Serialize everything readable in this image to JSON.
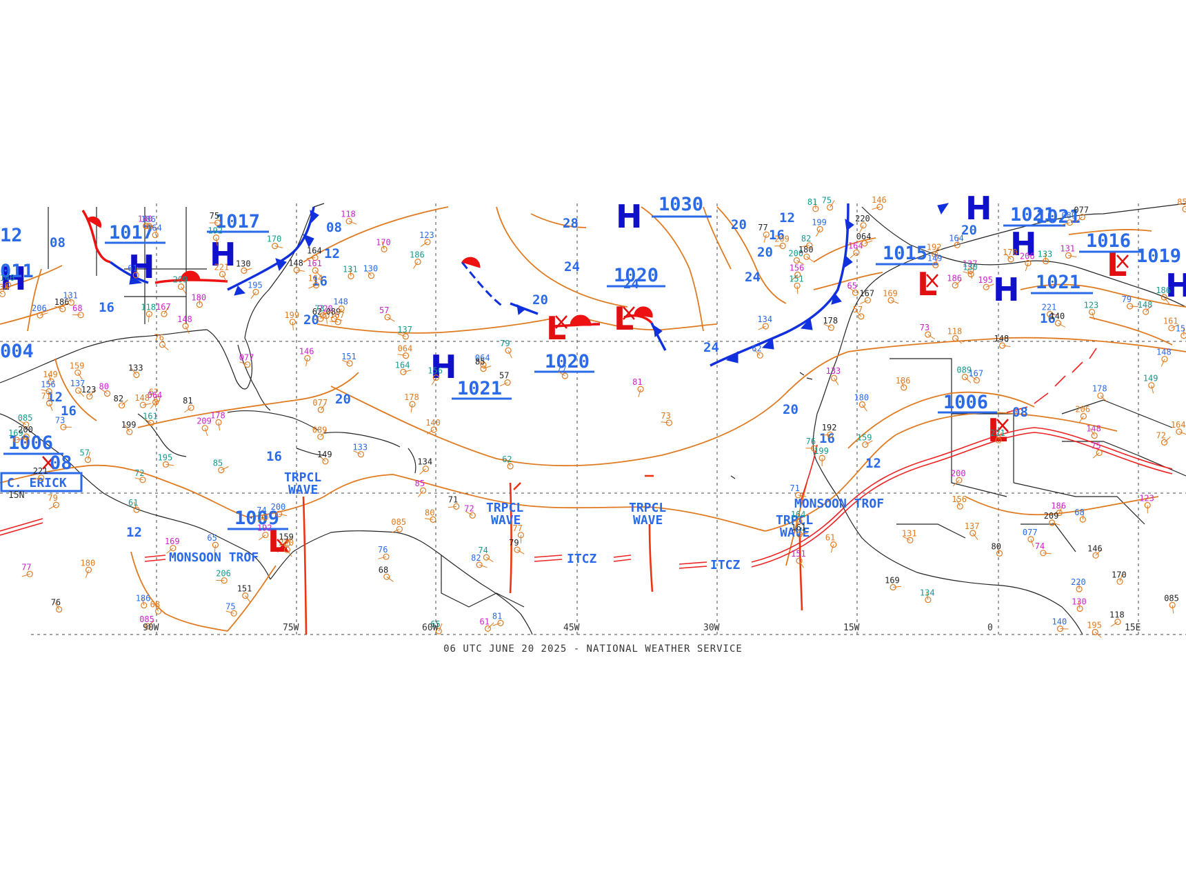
{
  "footer": "06 UTC JUNE 20 2025 - NATIONAL WEATHER SERVICE",
  "colors": {
    "isobar": "#e07a20",
    "high": "#1010cc",
    "low": "#e01010",
    "label": "#2a6ae8",
    "coast": "#222222",
    "grid": "#444444",
    "cold_front": "#1030dd",
    "warm_front": "#ee1111",
    "itcz": "#ee2222"
  },
  "grid": {
    "lon_labels": [
      "90W",
      "75W",
      "60W",
      "45W",
      "30W",
      "15W",
      "0",
      "15E"
    ],
    "lat_labels": [
      "15N"
    ]
  },
  "pressure_centers": [
    {
      "type": "H",
      "value": "1017",
      "id": "h-gulf-n"
    },
    {
      "type": "H",
      "value": "1017",
      "id": "h-se-us"
    },
    {
      "type": "H",
      "value": "1021",
      "id": "h-w-atl"
    },
    {
      "type": "H",
      "value": "1030",
      "id": "h-n-atl"
    },
    {
      "type": "H",
      "value": "1021",
      "id": "h-iberia"
    },
    {
      "type": "H",
      "value": "1021",
      "id": "h-n-africa"
    },
    {
      "type": "L",
      "value": "1015",
      "id": "l-nw-africa"
    },
    {
      "type": "L",
      "value": "1016",
      "id": "l-med"
    },
    {
      "type": "L",
      "value": "1006",
      "id": "l-sahel"
    },
    {
      "type": "L",
      "value": "1009",
      "id": "l-sw-carib"
    },
    {
      "type": "L",
      "value": "1020",
      "id": "l-central-atl"
    },
    {
      "type": "L",
      "value": "1006",
      "id": "l-erick"
    }
  ],
  "isobar_labels": [
    "24",
    "28",
    "20",
    "24",
    "24",
    "20",
    "20",
    "12",
    "16",
    "20",
    "24",
    "20",
    "16",
    "12",
    "16",
    "16",
    "20",
    "16",
    "12",
    "16",
    "12",
    "16",
    "20",
    "12",
    "16",
    "08",
    "12"
  ],
  "features": {
    "tropical_wave": "TRPCL WAVE",
    "monsoon_trof": "MONSOON TROF",
    "itcz": "ITCZ",
    "storm": "C. ERICK"
  },
  "edge_values": [
    "104",
    "12",
    "08",
    "011",
    "004",
    "1019",
    "1016",
    "1020",
    "20",
    "1030",
    "104",
    "08",
    "1021",
    "1015"
  ],
  "station_values": [
    "76",
    "68",
    "085",
    "61",
    "75",
    "159",
    "148",
    "169",
    "206",
    "186",
    "221",
    "220",
    "209",
    "195",
    "200",
    "199",
    "180",
    "192",
    "186",
    "133",
    "164",
    "167",
    "118",
    "137",
    "123",
    "089",
    "077",
    "146",
    "131",
    "130",
    "134",
    "140",
    "161",
    "164",
    "148",
    "149",
    "178",
    "170",
    "156",
    "151",
    "62",
    "064",
    "57",
    "73",
    "81",
    "79",
    "77",
    "85",
    "65",
    "82",
    "71",
    "80",
    "72",
    "74"
  ]
}
